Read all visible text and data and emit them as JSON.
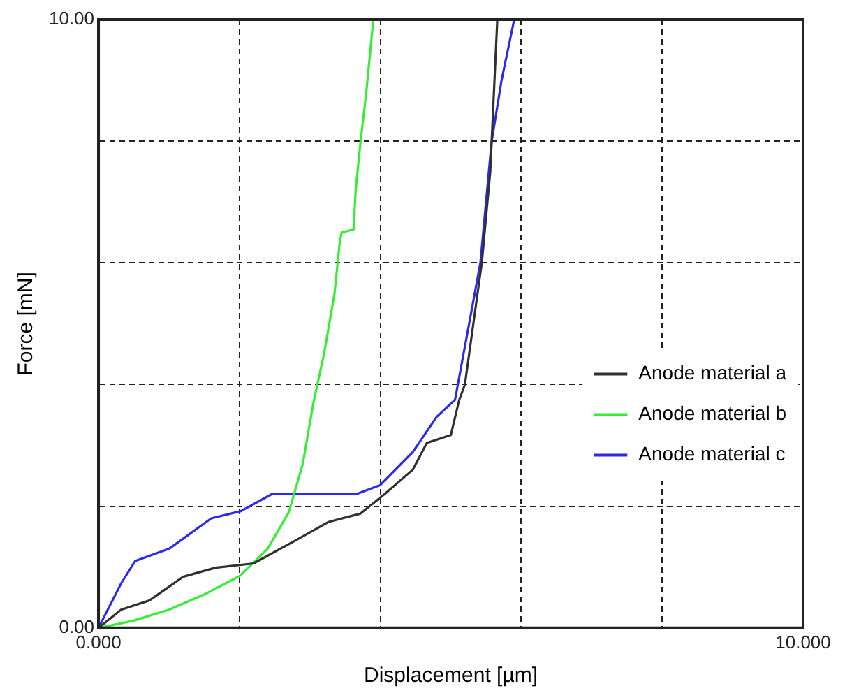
{
  "chart_data": {
    "type": "line",
    "xlabel": "Displacement [µm]",
    "ylabel": "Force [mN]",
    "xlim": [
      0,
      10
    ],
    "ylim": [
      0,
      10
    ],
    "xticks": [
      {
        "value": 0,
        "label": "0.000"
      },
      {
        "value": 2,
        "label": null
      },
      {
        "value": 4,
        "label": null
      },
      {
        "value": 6,
        "label": null
      },
      {
        "value": 8,
        "label": null
      },
      {
        "value": 10,
        "label": "10.000"
      }
    ],
    "yticks": [
      {
        "value": 0,
        "label": "0.00"
      },
      {
        "value": 2,
        "label": null
      },
      {
        "value": 4,
        "label": null
      },
      {
        "value": 6,
        "label": null
      },
      {
        "value": 8,
        "label": null
      },
      {
        "value": 10,
        "label": "10.00"
      }
    ],
    "grid": true,
    "legend": "right",
    "marker": "none",
    "line_style": "solid",
    "series": [
      {
        "name": "Anode material a",
        "color": "#303030",
        "x": [
          0,
          0.32,
          0.72,
          1.2,
          1.66,
          2.2,
          2.8,
          3.26,
          3.72,
          4.06,
          4.46,
          4.66,
          5.0,
          5.12,
          5.2,
          5.32,
          5.44,
          5.56,
          5.6,
          5.66
        ],
        "values": [
          0,
          0.3,
          0.45,
          0.84,
          0.99,
          1.06,
          1.44,
          1.74,
          1.88,
          2.2,
          2.6,
          3.04,
          3.17,
          3.75,
          4.0,
          5.0,
          6.0,
          7.5,
          8.5,
          10
        ]
      },
      {
        "name": "Anode material b",
        "color": "#33ee33",
        "x": [
          0,
          0.5,
          1,
          1.5,
          2,
          2.4,
          2.7,
          2.9,
          3.05,
          3.2,
          3.35,
          3.42,
          3.45,
          3.62,
          3.65,
          3.72,
          3.8,
          3.9
        ],
        "values": [
          0,
          0.12,
          0.3,
          0.55,
          0.85,
          1.3,
          1.9,
          2.7,
          3.7,
          4.5,
          5.5,
          6.3,
          6.5,
          6.55,
          7.2,
          8,
          8.8,
          10
        ]
      },
      {
        "name": "Anode material c",
        "color": "#2a2aee",
        "x": [
          0,
          0.32,
          0.52,
          1.0,
          1.6,
          2.02,
          2.46,
          3.66,
          4.0,
          4.46,
          4.8,
          5.06,
          5.1,
          5.42,
          5.58,
          5.72,
          5.9
        ],
        "values": [
          0,
          0.73,
          1.1,
          1.3,
          1.8,
          1.92,
          2.2,
          2.2,
          2.35,
          2.89,
          3.47,
          3.75,
          4.0,
          6.0,
          8.0,
          9.0,
          10
        ]
      }
    ]
  }
}
